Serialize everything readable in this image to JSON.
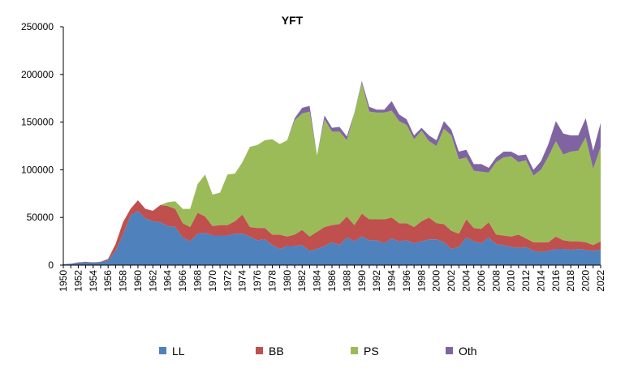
{
  "chart_data": {
    "type": "area",
    "stacked": true,
    "title": "YFT",
    "xlabel": "",
    "ylabel": "",
    "ylim": [
      0,
      250000
    ],
    "y_ticks": [
      0,
      50000,
      100000,
      150000,
      200000,
      250000
    ],
    "x_tick_labels": [
      "1950",
      "1952",
      "1954",
      "1956",
      "1958",
      "1960",
      "1962",
      "1964",
      "1966",
      "1968",
      "1970",
      "1972",
      "1974",
      "1976",
      "1978",
      "1980",
      "1982",
      "1984",
      "1986",
      "1988",
      "1990",
      "1992",
      "1994",
      "1996",
      "1998",
      "2000",
      "2002",
      "2004",
      "2006",
      "2008",
      "2010",
      "2012",
      "2014",
      "2016",
      "2018",
      "2020",
      "2022"
    ],
    "grid": false,
    "legend_position": "bottom",
    "x": [
      1950,
      1951,
      1952,
      1953,
      1954,
      1955,
      1956,
      1957,
      1958,
      1959,
      1960,
      1961,
      1962,
      1963,
      1964,
      1965,
      1966,
      1967,
      1968,
      1969,
      1970,
      1971,
      1972,
      1973,
      1974,
      1975,
      1976,
      1977,
      1978,
      1979,
      1980,
      1981,
      1982,
      1983,
      1984,
      1985,
      1986,
      1987,
      1988,
      1989,
      1990,
      1991,
      1992,
      1993,
      1994,
      1995,
      1996,
      1997,
      1998,
      1999,
      2000,
      2001,
      2002,
      2003,
      2004,
      2005,
      2006,
      2007,
      2008,
      2009,
      2010,
      2011,
      2012,
      2013,
      2014,
      2015,
      2016,
      2017,
      2018,
      2019,
      2020,
      2021,
      2022
    ],
    "series": [
      {
        "name": "LL",
        "color": "#4F81BD",
        "values": [
          1000,
          1500,
          2500,
          3000,
          2500,
          3000,
          5000,
          15000,
          32000,
          52000,
          57000,
          49000,
          46000,
          45000,
          41000,
          40000,
          29000,
          25000,
          33000,
          34000,
          31000,
          31000,
          31000,
          33000,
          33000,
          30000,
          26000,
          27000,
          21000,
          17000,
          20000,
          20000,
          21000,
          15000,
          17000,
          20000,
          24000,
          21000,
          29000,
          25000,
          30000,
          26000,
          26000,
          23000,
          28000,
          25000,
          26000,
          23000,
          25000,
          27000,
          27000,
          24000,
          17000,
          19000,
          29000,
          25000,
          23000,
          29000,
          22000,
          21000,
          19000,
          18000,
          19000,
          15000,
          14000,
          15000,
          17000,
          17000,
          16000,
          17000,
          16000,
          15000,
          16000
        ]
      },
      {
        "name": "BB",
        "color": "#C0504D",
        "values": [
          0,
          0,
          500,
          500,
          500,
          500,
          1500,
          7000,
          13000,
          7000,
          11000,
          10000,
          11000,
          18000,
          21000,
          19000,
          15000,
          15000,
          22000,
          17000,
          10000,
          11000,
          11000,
          13000,
          20000,
          10000,
          13000,
          12000,
          11000,
          15000,
          10000,
          12000,
          16000,
          15000,
          18000,
          20000,
          18000,
          22000,
          22000,
          17000,
          24000,
          22000,
          22000,
          25000,
          22000,
          19000,
          18000,
          17000,
          21000,
          23000,
          17000,
          19000,
          19000,
          14000,
          19000,
          14000,
          15000,
          16000,
          10000,
          10000,
          11000,
          14000,
          9000,
          9000,
          10000,
          9000,
          13000,
          9000,
          9000,
          8000,
          8000,
          6000,
          9000
        ]
      },
      {
        "name": "PS",
        "color": "#9BBB59",
        "values": [
          0,
          0,
          0,
          0,
          0,
          0,
          0,
          0,
          0,
          0,
          0,
          0,
          0,
          0,
          4000,
          8000,
          15000,
          19000,
          30000,
          44000,
          33000,
          34000,
          53000,
          50000,
          55000,
          84000,
          87000,
          92000,
          100000,
          95000,
          101000,
          120000,
          122000,
          131000,
          80000,
          113000,
          98000,
          97000,
          80000,
          118000,
          137000,
          113000,
          112000,
          112000,
          112000,
          107000,
          103000,
          92000,
          95000,
          80000,
          81000,
          100000,
          100000,
          78000,
          65000,
          60000,
          60000,
          52000,
          76000,
          82000,
          84000,
          76000,
          82000,
          70000,
          76000,
          90000,
          100000,
          90000,
          94000,
          95000,
          110000,
          80000,
          99000
        ]
      },
      {
        "name": "Oth",
        "color": "#8064A2",
        "values": [
          0,
          0,
          0,
          0,
          0,
          0,
          0,
          0,
          0,
          0,
          0,
          0,
          0,
          0,
          0,
          0,
          0,
          0,
          0,
          0,
          0,
          0,
          0,
          0,
          0,
          0,
          0,
          0,
          0,
          0,
          0,
          2000,
          6000,
          6000,
          0,
          4000,
          4000,
          5000,
          4000,
          0,
          2000,
          5000,
          3000,
          3000,
          10000,
          7000,
          6000,
          4000,
          3000,
          6000,
          6000,
          8000,
          6000,
          8000,
          8000,
          7000,
          8000,
          5000,
          5000,
          6000,
          5000,
          7000,
          6000,
          6000,
          9000,
          13000,
          21000,
          22000,
          17000,
          16000,
          20000,
          19000,
          25000
        ]
      }
    ]
  }
}
